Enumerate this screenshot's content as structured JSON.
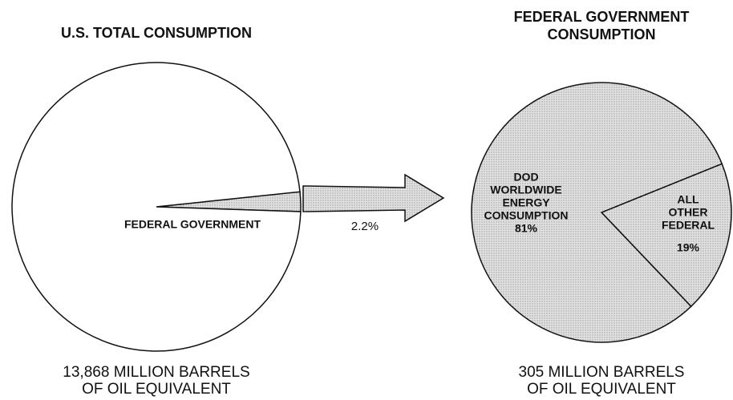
{
  "chart_data": [
    {
      "type": "pie",
      "title": "U.S. TOTAL CONSUMPTION",
      "categories": [
        [
          "FEDERAL GOVERNMENT"
        ],
        null
      ],
      "values": [
        2.2,
        97.8
      ],
      "value_labels": [
        "2.2%",
        null
      ],
      "colors": [
        "#d2d2d2",
        "#ffffff"
      ],
      "footnote": [
        "13,868 MILLION BARRELS",
        "OF OIL EQUIVALENT"
      ]
    },
    {
      "type": "pie",
      "title": [
        "FEDERAL GOVERNMENT",
        "CONSUMPTION"
      ],
      "categories": [
        [
          "ALL",
          "OTHER",
          "FEDERAL"
        ],
        [
          "DOD",
          "WORLDWIDE",
          "ENERGY",
          "CONSUMPTION"
        ]
      ],
      "values": [
        19,
        81
      ],
      "value_labels": [
        "19%",
        "81%"
      ],
      "colors": [
        "#d2d2d2",
        "#d2d2d2"
      ],
      "footnote": [
        "305 MILLION BARRELS",
        "OF OIL EQUIVALENT"
      ]
    }
  ]
}
